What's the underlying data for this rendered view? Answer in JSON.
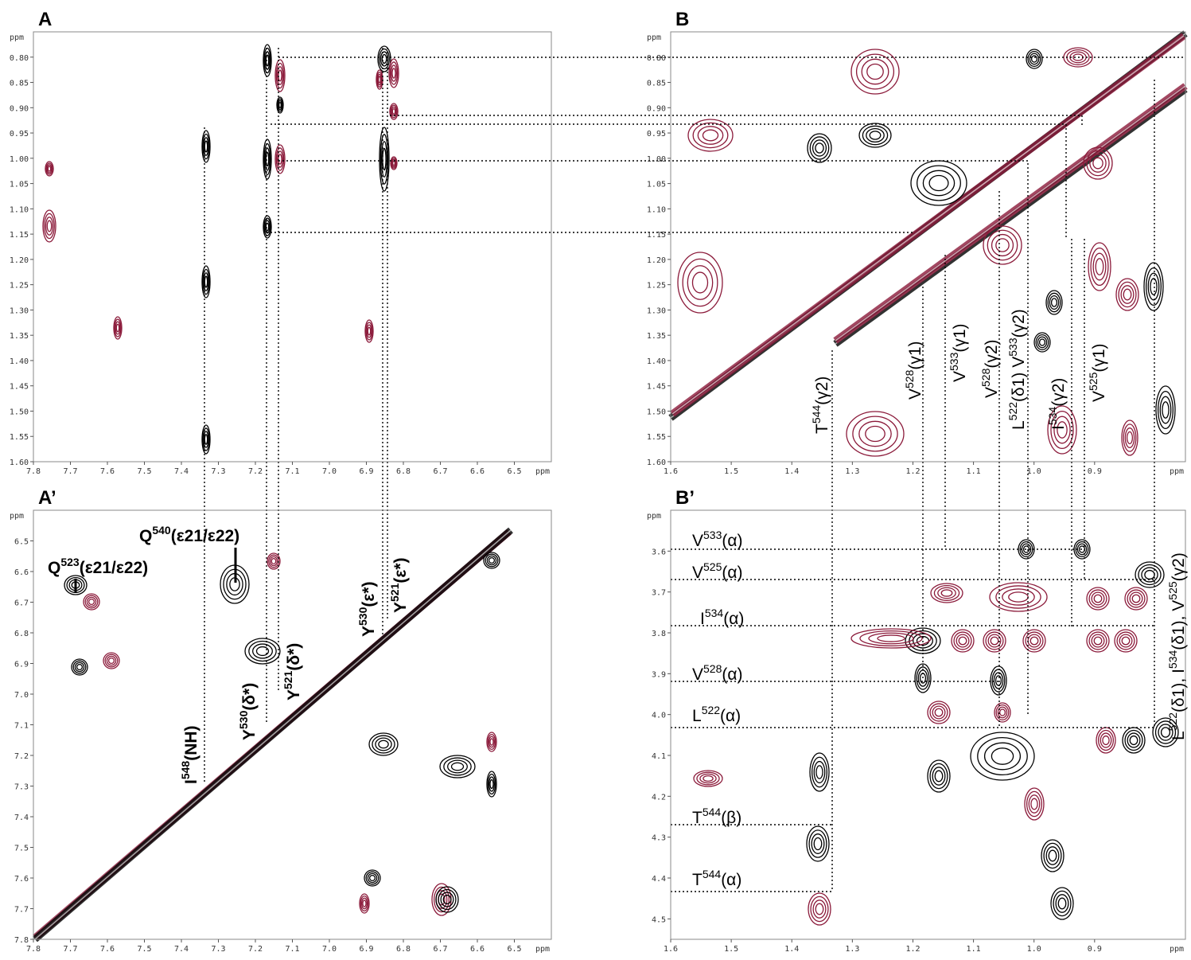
{
  "panels": [
    {
      "label": "A",
      "x_unit": "ppm",
      "y_unit": "ppm",
      "xlim": [
        7.8,
        6.4
      ],
      "ylim": [
        0.75,
        1.6
      ],
      "xticks": [
        7.8,
        7.7,
        7.6,
        7.5,
        7.4,
        7.3,
        7.2,
        7.1,
        {
          "value": 7.0,
          "label": "7.0"
        },
        6.9,
        6.8,
        6.7,
        6.6,
        6.5
      ],
      "yticks": [
        {
          "value": 0.8,
          "label": "0.80"
        },
        0.85,
        {
          "value": 0.9,
          "label": "0.90"
        },
        0.95,
        {
          "value": 1.0,
          "label": "1.00"
        },
        1.05,
        {
          "value": 1.1,
          "label": "1.10"
        },
        1.15,
        {
          "value": 1.2,
          "label": "1.20"
        },
        1.25,
        {
          "value": 1.3,
          "label": "1.30"
        },
        1.35,
        {
          "value": 1.4,
          "label": "1.40"
        },
        1.45,
        {
          "value": 1.5,
          "label": "1.50"
        },
        1.55,
        {
          "value": 1.6,
          "label": "1.60"
        }
      ],
      "annotations": []
    },
    {
      "label": "B",
      "x_unit": "ppm",
      "y_unit": "ppm",
      "xlim": [
        1.6,
        0.75
      ],
      "ylim": [
        0.75,
        1.6
      ],
      "xticks": [
        1.6,
        1.5,
        1.4,
        1.3,
        1.2,
        1.1,
        {
          "value": 1.0,
          "label": "1.0"
        },
        0.9
      ],
      "yticks": [
        {
          "value": 0.8,
          "label": "0.80"
        },
        0.85,
        {
          "value": 0.9,
          "label": "0.90"
        },
        0.95,
        {
          "value": 1.0,
          "label": "1.00"
        },
        1.05,
        {
          "value": 1.1,
          "label": "1.10"
        },
        1.15,
        {
          "value": 1.2,
          "label": "1.20"
        },
        1.25,
        {
          "value": 1.3,
          "label": "1.30"
        },
        1.35,
        {
          "value": 1.4,
          "label": "1.40"
        },
        1.45,
        {
          "value": 1.5,
          "label": "1.50"
        },
        1.55,
        {
          "value": 1.6,
          "label": "1.60"
        }
      ],
      "annotations": [
        [
          "T",
          "544",
          "(γ2)"
        ],
        [
          "V",
          "528",
          "(γ1)"
        ],
        [
          "V",
          "533",
          "(γ1)"
        ],
        [
          "V",
          "528",
          "(γ2)"
        ],
        [
          "L",
          "522",
          "(δ1) V",
          "533",
          "(γ2)"
        ],
        [
          "I",
          "534",
          "(γ2)"
        ],
        [
          "V",
          "525",
          "(γ1)"
        ]
      ]
    },
    {
      "label": "A’",
      "x_unit": "ppm",
      "y_unit": "ppm",
      "xlim": [
        7.8,
        6.4
      ],
      "ylim": [
        6.4,
        7.8
      ],
      "xticks": [
        7.8,
        7.7,
        7.6,
        7.5,
        7.4,
        7.3,
        7.2,
        7.1,
        {
          "value": 7.0,
          "label": "7.0"
        },
        6.9,
        6.8,
        6.7,
        6.6,
        6.5
      ],
      "yticks": [
        6.5,
        6.6,
        6.7,
        6.8,
        6.9,
        {
          "value": 7.0,
          "label": "7.0"
        },
        7.1,
        7.2,
        7.3,
        7.4,
        7.5,
        7.6,
        7.7,
        7.8
      ],
      "annotations": [
        [
          "Q",
          "523",
          "(ε21/ε22)"
        ],
        [
          "Q",
          "540",
          "(ε21/ε22)"
        ],
        [
          "I",
          "548",
          "(NH)"
        ],
        [
          "Y",
          "530",
          "(δ*)"
        ],
        [
          "Y",
          "521",
          "(δ*)"
        ],
        [
          "Y",
          "530",
          "(ε*)"
        ],
        [
          "Y",
          "521",
          "(ε*)"
        ]
      ]
    },
    {
      "label": "B’",
      "x_unit": "ppm",
      "y_unit": "ppm",
      "xlim": [
        1.6,
        0.75
      ],
      "ylim": [
        3.5,
        4.55
      ],
      "xticks": [
        1.6,
        1.5,
        1.4,
        1.3,
        1.2,
        1.1,
        {
          "value": 1.0,
          "label": "1.0"
        },
        0.9
      ],
      "yticks": [
        3.6,
        3.7,
        3.8,
        3.9,
        {
          "value": 4.0,
          "label": "4.0"
        },
        4.1,
        4.2,
        4.3,
        4.4,
        4.5
      ],
      "annotations": [
        [
          "V",
          "533",
          "(α)"
        ],
        [
          "V",
          "525",
          "(α)"
        ],
        [
          "I",
          "534",
          "(α)"
        ],
        [
          "V",
          "528",
          "(α)"
        ],
        [
          "L",
          "522",
          "(α)"
        ],
        [
          "T",
          "544",
          "(β)"
        ],
        [
          "T",
          "544",
          "(α)"
        ],
        [
          "L",
          "522",
          "(δ1), I",
          "534",
          "(δ1), V",
          "525",
          "(γ2)"
        ]
      ]
    }
  ]
}
